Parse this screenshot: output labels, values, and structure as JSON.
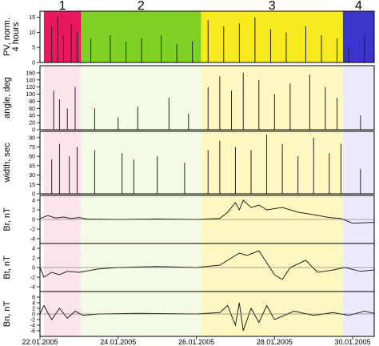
{
  "chart_data": {
    "type": "line",
    "x_axis": {
      "start": "22.01.2005",
      "end": "30.01.2005",
      "range_days": [
        0,
        8.55
      ],
      "ticks": [
        {
          "day": 0,
          "label": "22.01.2005"
        },
        {
          "day": 2,
          "label": "24.01.2005"
        },
        {
          "day": 4,
          "label": "26.01.2005"
        },
        {
          "day": 6,
          "label": "28.01.2005"
        },
        {
          "day": 8,
          "label": "30.01.2005"
        }
      ]
    },
    "intervals": [
      {
        "label": "1",
        "start_day": 0.1,
        "end_day": 1.05,
        "color": "#e8175f",
        "shade": "#fde3ee"
      },
      {
        "label": "2",
        "start_day": 1.05,
        "end_day": 4.12,
        "color": "#7fd225",
        "shade": "#f3fbe6"
      },
      {
        "label": "3",
        "start_day": 4.12,
        "end_day": 7.75,
        "color": "#f7ea1e",
        "shade": "#fdf8c2"
      },
      {
        "label": "4",
        "start_day": 7.75,
        "end_day": 8.55,
        "color": "#3b35ce",
        "shade": "#eceafd"
      }
    ],
    "panels": [
      {
        "id": "pv",
        "ylabel": "PV, norm.\n4 hours",
        "ylim": [
          0,
          17
        ],
        "yticks": [
          0,
          5,
          10,
          15
        ],
        "series": [
          {
            "kind": "bars",
            "spikes": [
              [
                0.3,
                12
              ],
              [
                0.45,
                15
              ],
              [
                0.6,
                9
              ],
              [
                0.8,
                13
              ],
              [
                0.95,
                10
              ],
              [
                1.3,
                8
              ],
              [
                1.8,
                9
              ],
              [
                2.2,
                7
              ],
              [
                2.6,
                8
              ],
              [
                3.1,
                9
              ],
              [
                3.5,
                6
              ],
              [
                3.9,
                7
              ],
              [
                4.3,
                14
              ],
              [
                4.7,
                12
              ],
              [
                5.1,
                13
              ],
              [
                5.5,
                15
              ],
              [
                5.9,
                11
              ],
              [
                6.3,
                10
              ],
              [
                6.8,
                12
              ],
              [
                7.2,
                9
              ],
              [
                7.6,
                8
              ],
              [
                7.9,
                5
              ],
              [
                8.3,
                9
              ]
            ]
          }
        ]
      },
      {
        "id": "angle",
        "ylabel": "angle, deg",
        "ylim": [
          0,
          180
        ],
        "yticks": [
          0,
          20,
          40,
          60,
          80,
          100,
          120,
          140,
          160
        ],
        "series": [
          {
            "kind": "bars",
            "spikes": [
              [
                0.35,
                110
              ],
              [
                0.5,
                85
              ],
              [
                0.7,
                60
              ],
              [
                0.9,
                120
              ],
              [
                1.4,
                60
              ],
              [
                2.0,
                35
              ],
              [
                2.5,
                65
              ],
              [
                3.3,
                90
              ],
              [
                3.8,
                45
              ],
              [
                4.3,
                120
              ],
              [
                4.6,
                150
              ],
              [
                4.9,
                110
              ],
              [
                5.2,
                160
              ],
              [
                5.6,
                140
              ],
              [
                6.0,
                100
              ],
              [
                6.4,
                130
              ],
              [
                6.9,
                155
              ],
              [
                7.3,
                120
              ],
              [
                7.6,
                90
              ],
              [
                8.2,
                40
              ]
            ]
          }
        ]
      },
      {
        "id": "width",
        "ylabel": "width, sec",
        "ylim": [
          0,
          100
        ],
        "yticks": [
          0,
          15,
          30,
          45,
          60,
          75,
          90
        ],
        "series": [
          {
            "kind": "bars",
            "spikes": [
              [
                0.3,
                55
              ],
              [
                0.5,
                80
              ],
              [
                0.75,
                60
              ],
              [
                0.95,
                75
              ],
              [
                1.4,
                70
              ],
              [
                2.1,
                65
              ],
              [
                2.4,
                55
              ],
              [
                3.0,
                60
              ],
              [
                3.7,
                50
              ],
              [
                4.3,
                70
              ],
              [
                4.6,
                85
              ],
              [
                5.0,
                75
              ],
              [
                5.4,
                70
              ],
              [
                5.8,
                95
              ],
              [
                6.2,
                80
              ],
              [
                6.6,
                60
              ],
              [
                7.0,
                90
              ],
              [
                7.4,
                65
              ],
              [
                7.7,
                80
              ],
              [
                8.2,
                40
              ]
            ]
          }
        ]
      },
      {
        "id": "br",
        "ylabel": "Br, nT",
        "ylim": [
          -5,
          5
        ],
        "yticks": [
          -4,
          -2,
          0,
          2,
          4
        ],
        "series": [
          {
            "kind": "line",
            "points": [
              [
                0,
                0.2
              ],
              [
                0.2,
                0.8
              ],
              [
                0.4,
                0.3
              ],
              [
                0.6,
                0.5
              ],
              [
                0.8,
                0.2
              ],
              [
                1.0,
                0.4
              ],
              [
                1.2,
                0.1
              ],
              [
                2,
                0
              ],
              [
                3,
                0.1
              ],
              [
                4,
                0
              ],
              [
                4.6,
                0.2
              ],
              [
                4.8,
                1.5
              ],
              [
                5.0,
                3.5
              ],
              [
                5.1,
                2
              ],
              [
                5.2,
                4
              ],
              [
                5.4,
                2.5
              ],
              [
                5.6,
                3
              ],
              [
                5.8,
                2
              ],
              [
                6.2,
                2.5
              ],
              [
                6.6,
                1.5
              ],
              [
                7.0,
                1
              ],
              [
                7.4,
                0.4
              ],
              [
                7.7,
                0.2
              ],
              [
                8.0,
                -0.8
              ],
              [
                8.55,
                -0.6
              ]
            ]
          }
        ]
      },
      {
        "id": "bt",
        "ylabel": "Bt, nT",
        "ylim": [
          -5,
          5
        ],
        "yticks": [
          -4,
          -2,
          0,
          2,
          4
        ],
        "series": [
          {
            "kind": "line",
            "points": [
              [
                0,
                0
              ],
              [
                0.1,
                -2
              ],
              [
                0.3,
                -1
              ],
              [
                0.5,
                -1.5
              ],
              [
                0.7,
                -0.8
              ],
              [
                1.0,
                -1
              ],
              [
                1.5,
                -0.3
              ],
              [
                2,
                0
              ],
              [
                3,
                0.2
              ],
              [
                4,
                0
              ],
              [
                4.6,
                0.5
              ],
              [
                4.9,
                2
              ],
              [
                5.1,
                3
              ],
              [
                5.3,
                2.5
              ],
              [
                5.6,
                3.5
              ],
              [
                5.8,
                1
              ],
              [
                6.0,
                -1.5
              ],
              [
                6.2,
                -2.5
              ],
              [
                6.4,
                0
              ],
              [
                6.8,
                1.5
              ],
              [
                7.1,
                -1
              ],
              [
                7.5,
                -0.5
              ],
              [
                7.8,
                0
              ],
              [
                8.2,
                -0.8
              ],
              [
                8.55,
                -0.5
              ]
            ]
          }
        ]
      },
      {
        "id": "bn",
        "ylabel": "Bn, nT",
        "ylim": [
          -8,
          8
        ],
        "yticks": [
          -6,
          -4,
          -2,
          0,
          2,
          4,
          6
        ],
        "series": [
          {
            "kind": "line",
            "points": [
              [
                0,
                0
              ],
              [
                0.1,
                3
              ],
              [
                0.3,
                -2
              ],
              [
                0.5,
                2
              ],
              [
                0.7,
                -1.5
              ],
              [
                0.9,
                1
              ],
              [
                1.1,
                -0.5
              ],
              [
                1.5,
                0
              ],
              [
                2.5,
                0.2
              ],
              [
                4,
                0
              ],
              [
                4.6,
                0.5
              ],
              [
                4.8,
                3
              ],
              [
                5.0,
                -4
              ],
              [
                5.1,
                4
              ],
              [
                5.2,
                -6
              ],
              [
                5.4,
                2
              ],
              [
                5.6,
                -3
              ],
              [
                5.8,
                3
              ],
              [
                6.0,
                -2
              ],
              [
                6.5,
                1
              ],
              [
                7.0,
                -0.5
              ],
              [
                7.5,
                0.5
              ],
              [
                7.9,
                -0.5
              ],
              [
                8.3,
                1
              ],
              [
                8.55,
                0.2
              ]
            ]
          }
        ]
      }
    ]
  }
}
